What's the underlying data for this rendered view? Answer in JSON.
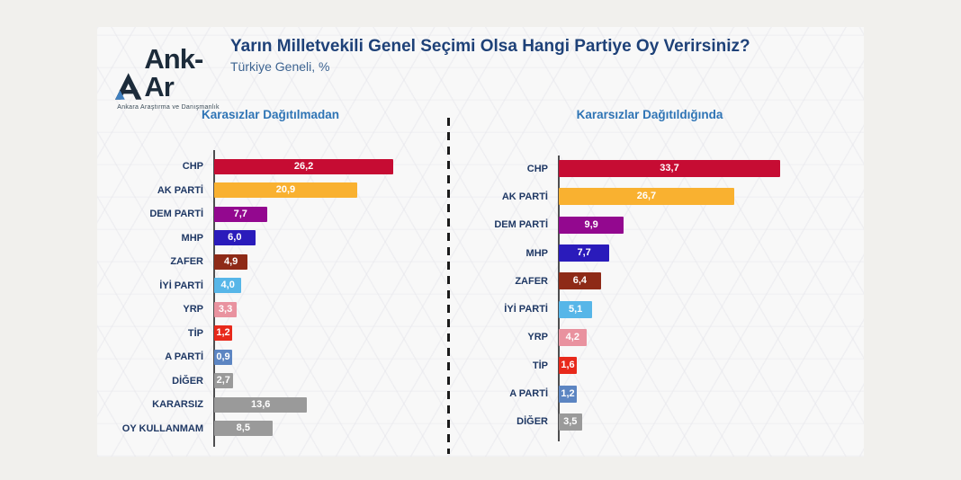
{
  "logo": {
    "name": "Ank-Ar",
    "tagline": "Ankara Araştırma ve Danışmanlık"
  },
  "header": {
    "title": "Yarın Milletvekili Genel Seçimi Olsa Hangi Partiye Oy Verirsiniz?",
    "subtitle": "Türkiye Geneli, %"
  },
  "palette": {
    "title_text": "#1E4178",
    "subtitle_text": "#3D6491",
    "section_header_text": "#2E74B5",
    "party_label_text": "#1F3864",
    "value_label_text": "#FFFFFF",
    "axis": "#4E4E50",
    "divider": "#1B1B1B",
    "gray_bar": "#9A9A9A"
  },
  "chart_data": [
    {
      "type": "bar",
      "orientation": "horizontal",
      "title": "Karasızlar Dağıtılmadan",
      "unit": "%",
      "xlim": [
        0,
        30
      ],
      "grid": false,
      "legend": "none",
      "categories": [
        "CHP",
        "AK PARTİ",
        "DEM PARTİ",
        "MHP",
        "ZAFER",
        "İYİ PARTİ",
        "YRP",
        "TİP",
        "A PARTİ",
        "DİĞER",
        "KARARSIZ",
        "OY KULLANMAM"
      ],
      "values": [
        26.2,
        20.9,
        7.7,
        6.0,
        4.9,
        4.0,
        3.3,
        1.2,
        0.9,
        2.7,
        13.6,
        8.5
      ],
      "value_labels": [
        "26,2",
        "20,9",
        "7,7",
        "6,0",
        "4,9",
        "4,0",
        "3,3",
        "1,2",
        "0,9",
        "2,7",
        "13,6",
        "8,5"
      ],
      "colors": [
        "#C60C33",
        "#F9B130",
        "#93088F",
        "#2A1BBB",
        "#8E2A17",
        "#57B6E8",
        "#E9929F",
        "#E8291B",
        "#5C85C2",
        "#9A9A9A",
        "#9A9A9A",
        "#9A9A9A"
      ]
    },
    {
      "type": "bar",
      "orientation": "horizontal",
      "title": "Kararsızlar Dağıtıldığında",
      "unit": "%",
      "xlim": [
        0,
        35
      ],
      "grid": false,
      "legend": "none",
      "categories": [
        "CHP",
        "AK PARTİ",
        "DEM PARTİ",
        "MHP",
        "ZAFER",
        "İYİ PARTİ",
        "YRP",
        "TİP",
        "A PARTİ",
        "DİĞER"
      ],
      "values": [
        33.7,
        26.7,
        9.9,
        7.7,
        6.4,
        5.1,
        4.2,
        1.6,
        1.2,
        3.5
      ],
      "value_labels": [
        "33,7",
        "26,7",
        "9,9",
        "7,7",
        "6,4",
        "5,1",
        "4,2",
        "1,6",
        "1,2",
        "3,5"
      ],
      "colors": [
        "#C60C33",
        "#F9B130",
        "#93088F",
        "#2A1BBB",
        "#8E2A17",
        "#57B6E8",
        "#E9929F",
        "#E8291B",
        "#5C85C2",
        "#9A9A9A"
      ]
    }
  ]
}
